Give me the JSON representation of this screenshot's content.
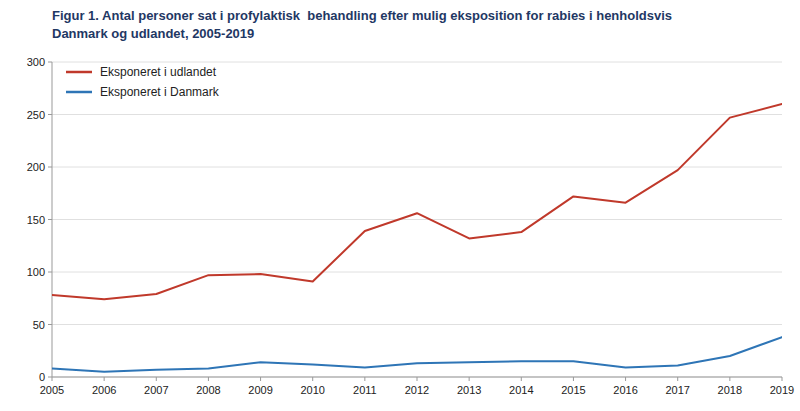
{
  "chart_data": {
    "type": "line",
    "title": "Figur 1. Antal personer sat i profylaktisk  behandling efter mulig eksposition for rabies i henholdsvis\nDanmark og udlandet, 2005-2019",
    "x": [
      2005,
      2006,
      2007,
      2008,
      2009,
      2010,
      2011,
      2012,
      2013,
      2014,
      2015,
      2016,
      2017,
      2018,
      2019
    ],
    "series": [
      {
        "name": "Eksponeret i udlandet",
        "color": "#c0392b",
        "values": [
          78,
          74,
          79,
          97,
          98,
          91,
          139,
          156,
          132,
          138,
          172,
          166,
          197,
          247,
          260
        ]
      },
      {
        "name": "Eksponeret i Danmark",
        "color": "#2e75b6",
        "values": [
          8,
          5,
          7,
          8,
          14,
          12,
          9,
          13,
          14,
          15,
          15,
          9,
          11,
          20,
          38
        ]
      }
    ],
    "xlim": [
      2005,
      2019
    ],
    "xticks": [
      2005,
      2006,
      2007,
      2008,
      2009,
      2010,
      2011,
      2012,
      2013,
      2014,
      2015,
      2016,
      2017,
      2018,
      2019
    ],
    "ylim": [
      0,
      300
    ],
    "yticks": [
      0,
      50,
      100,
      150,
      200,
      250,
      300
    ],
    "grid": true,
    "legend": "upper-left"
  }
}
